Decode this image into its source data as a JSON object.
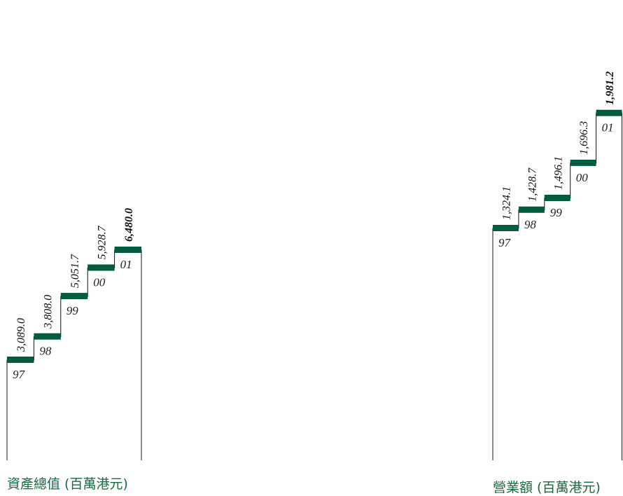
{
  "chart_data": [
    {
      "type": "bar",
      "title": "資產總值 (百萬港元)",
      "categories": [
        "97",
        "98",
        "99",
        "00",
        "01"
      ],
      "values": [
        3089.0,
        3808.0,
        5051.7,
        5928.7,
        6480.0
      ],
      "value_labels": [
        "3,089.0",
        "3,808.0",
        "5,051.7",
        "5,928.7",
        "6,480.0"
      ],
      "highlight_last": true,
      "accent_color": "#005c3a"
    },
    {
      "type": "bar",
      "title": "營業額 (百萬港元)",
      "categories": [
        "97",
        "98",
        "99",
        "00",
        "01"
      ],
      "values": [
        1324.1,
        1428.7,
        1496.1,
        1696.3,
        1981.2
      ],
      "value_labels": [
        "1,324.1",
        "1,428.7",
        "1,496.1",
        "1,696.3",
        "1,981.2"
      ],
      "highlight_last": true,
      "accent_color": "#005c3a"
    }
  ]
}
